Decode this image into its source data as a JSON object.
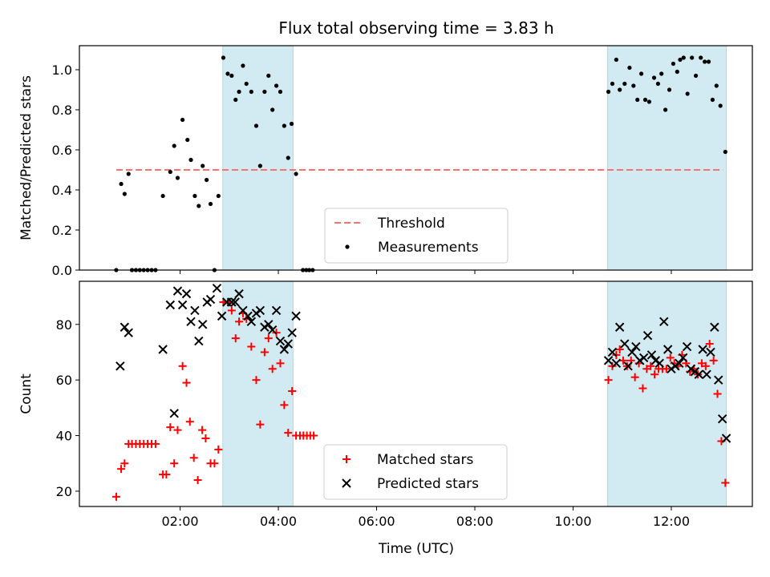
{
  "chart_data": {
    "title": "Flux total observing time = 3.83 h",
    "x_label": "Time (UTC)",
    "x_range_hours": [
      -0.05,
      13.65
    ],
    "x_ticks": [
      "02:00",
      "04:00",
      "06:00",
      "08:00",
      "10:00",
      "12:00"
    ],
    "x_tick_hours": [
      2,
      4,
      6,
      8,
      10,
      12
    ],
    "shaded_intervals_hours": [
      [
        2.87,
        4.3
      ],
      [
        10.7,
        13.12
      ]
    ],
    "shade_color": "#add8e6",
    "panels": [
      {
        "type": "scatter",
        "y_label": "Matched/Predicted stars",
        "y_range": [
          0.0,
          1.12
        ],
        "y_ticks": [
          "0.0",
          "0.2",
          "0.4",
          "0.6",
          "0.8",
          "1.0"
        ],
        "y_tick_values": [
          0,
          0.2,
          0.4,
          0.6,
          0.8,
          1.0
        ],
        "legend": [
          {
            "label": "Threshold",
            "style": "dashed-line",
            "color": "#ff7070"
          },
          {
            "label": "Measurements",
            "style": "dot",
            "color": "#000000"
          }
        ],
        "threshold": {
          "name": "Threshold",
          "value": 0.5,
          "x": [
            0.7,
            13.05
          ],
          "color": "#ff7070"
        },
        "series": [
          {
            "name": "Measurements",
            "marker": "dot",
            "color": "#000000",
            "points": [
              [
                0.7,
                0.0
              ],
              [
                0.8,
                0.43
              ],
              [
                0.87,
                0.38
              ],
              [
                0.95,
                0.48
              ],
              [
                1.02,
                0.0
              ],
              [
                1.1,
                0.0
              ],
              [
                1.18,
                0.0
              ],
              [
                1.26,
                0.0
              ],
              [
                1.34,
                0.0
              ],
              [
                1.42,
                0.0
              ],
              [
                1.5,
                0.0
              ],
              [
                1.65,
                0.37
              ],
              [
                1.8,
                0.49
              ],
              [
                1.88,
                0.62
              ],
              [
                1.95,
                0.46
              ],
              [
                2.05,
                0.75
              ],
              [
                2.15,
                0.65
              ],
              [
                2.22,
                0.55
              ],
              [
                2.3,
                0.37
              ],
              [
                2.38,
                0.32
              ],
              [
                2.46,
                0.52
              ],
              [
                2.54,
                0.45
              ],
              [
                2.62,
                0.33
              ],
              [
                2.7,
                0.0
              ],
              [
                2.78,
                0.37
              ],
              [
                2.88,
                1.06
              ],
              [
                2.97,
                0.98
              ],
              [
                3.05,
                0.97
              ],
              [
                3.13,
                0.85
              ],
              [
                3.2,
                0.89
              ],
              [
                3.28,
                1.02
              ],
              [
                3.35,
                0.93
              ],
              [
                3.45,
                0.89
              ],
              [
                3.55,
                0.72
              ],
              [
                3.63,
                0.52
              ],
              [
                3.72,
                0.89
              ],
              [
                3.8,
                0.97
              ],
              [
                3.88,
                0.8
              ],
              [
                3.96,
                0.92
              ],
              [
                4.04,
                0.89
              ],
              [
                4.12,
                0.72
              ],
              [
                4.2,
                0.56
              ],
              [
                4.27,
                0.73
              ],
              [
                4.36,
                0.48
              ],
              [
                4.5,
                0.0
              ],
              [
                4.57,
                0.0
              ],
              [
                4.63,
                0.0
              ],
              [
                4.7,
                0.0
              ],
              [
                10.72,
                0.89
              ],
              [
                10.8,
                0.93
              ],
              [
                10.88,
                1.05
              ],
              [
                10.95,
                0.9
              ],
              [
                11.05,
                0.93
              ],
              [
                11.15,
                1.01
              ],
              [
                11.23,
                0.92
              ],
              [
                11.31,
                0.85
              ],
              [
                11.39,
                0.98
              ],
              [
                11.47,
                0.85
              ],
              [
                11.55,
                0.84
              ],
              [
                11.65,
                0.96
              ],
              [
                11.73,
                0.93
              ],
              [
                11.8,
                0.98
              ],
              [
                11.88,
                0.8
              ],
              [
                11.96,
                0.9
              ],
              [
                12.04,
                1.03
              ],
              [
                12.12,
                0.99
              ],
              [
                12.18,
                1.05
              ],
              [
                12.25,
                1.06
              ],
              [
                12.33,
                0.88
              ],
              [
                12.42,
                1.06
              ],
              [
                12.5,
                0.97
              ],
              [
                12.6,
                1.06
              ],
              [
                12.68,
                1.04
              ],
              [
                12.76,
                1.04
              ],
              [
                12.84,
                0.85
              ],
              [
                12.92,
                0.92
              ],
              [
                13.0,
                0.82
              ],
              [
                13.1,
                0.59
              ]
            ]
          }
        ]
      },
      {
        "type": "scatter",
        "y_label": "Count",
        "y_range": [
          14.5,
          95.5
        ],
        "y_ticks": [
          "20",
          "40",
          "60",
          "80"
        ],
        "y_tick_values": [
          20,
          40,
          60,
          80
        ],
        "legend": [
          {
            "label": "Matched stars",
            "style": "plus",
            "color": "#ff0000"
          },
          {
            "label": "Predicted stars",
            "style": "x",
            "color": "#000000"
          }
        ],
        "series": [
          {
            "name": "Matched stars",
            "marker": "plus",
            "color": "#ff0000",
            "points": [
              [
                0.7,
                18
              ],
              [
                0.8,
                28
              ],
              [
                0.87,
                30
              ],
              [
                0.95,
                37
              ],
              [
                1.02,
                37
              ],
              [
                1.1,
                37
              ],
              [
                1.18,
                37
              ],
              [
                1.26,
                37
              ],
              [
                1.34,
                37
              ],
              [
                1.42,
                37
              ],
              [
                1.5,
                37
              ],
              [
                1.65,
                26
              ],
              [
                1.72,
                26
              ],
              [
                1.8,
                43
              ],
              [
                1.88,
                30
              ],
              [
                1.95,
                42
              ],
              [
                2.05,
                65
              ],
              [
                2.13,
                59
              ],
              [
                2.2,
                45
              ],
              [
                2.28,
                32
              ],
              [
                2.36,
                24
              ],
              [
                2.45,
                42
              ],
              [
                2.52,
                39
              ],
              [
                2.62,
                30
              ],
              [
                2.7,
                30
              ],
              [
                2.78,
                35
              ],
              [
                2.88,
                88
              ],
              [
                2.97,
                88
              ],
              [
                3.05,
                85
              ],
              [
                3.13,
                75
              ],
              [
                3.2,
                81
              ],
              [
                3.28,
                84
              ],
              [
                3.35,
                82
              ],
              [
                3.45,
                72
              ],
              [
                3.55,
                60
              ],
              [
                3.63,
                44
              ],
              [
                3.72,
                70
              ],
              [
                3.8,
                75
              ],
              [
                3.88,
                64
              ],
              [
                3.96,
                77
              ],
              [
                4.04,
                66
              ],
              [
                4.12,
                51
              ],
              [
                4.2,
                41
              ],
              [
                4.28,
                56
              ],
              [
                4.36,
                40
              ],
              [
                4.44,
                40
              ],
              [
                4.51,
                40
              ],
              [
                4.58,
                40
              ],
              [
                4.65,
                40
              ],
              [
                4.72,
                40
              ],
              [
                10.72,
                60
              ],
              [
                10.8,
                65
              ],
              [
                10.88,
                69
              ],
              [
                10.95,
                71
              ],
              [
                11.02,
                67
              ],
              [
                11.1,
                65
              ],
              [
                11.18,
                67
              ],
              [
                11.26,
                61
              ],
              [
                11.34,
                66
              ],
              [
                11.42,
                57
              ],
              [
                11.5,
                64
              ],
              [
                11.58,
                65
              ],
              [
                11.66,
                62
              ],
              [
                11.74,
                64
              ],
              [
                11.82,
                64
              ],
              [
                11.9,
                64
              ],
              [
                11.98,
                68
              ],
              [
                12.06,
                66
              ],
              [
                12.14,
                65
              ],
              [
                12.22,
                69
              ],
              [
                12.3,
                66
              ],
              [
                12.38,
                63
              ],
              [
                12.46,
                64
              ],
              [
                12.54,
                62
              ],
              [
                12.62,
                66
              ],
              [
                12.7,
                65
              ],
              [
                12.78,
                73
              ],
              [
                12.86,
                67
              ],
              [
                12.94,
                55
              ],
              [
                13.02,
                38
              ],
              [
                13.1,
                23
              ]
            ]
          },
          {
            "name": "Predicted stars",
            "marker": "x",
            "color": "#000000",
            "points": [
              [
                0.78,
                65
              ],
              [
                0.87,
                79
              ],
              [
                0.95,
                77
              ],
              [
                1.65,
                71
              ],
              [
                1.8,
                87
              ],
              [
                1.88,
                48
              ],
              [
                1.95,
                92
              ],
              [
                2.05,
                87
              ],
              [
                2.13,
                91
              ],
              [
                2.22,
                81
              ],
              [
                2.3,
                85
              ],
              [
                2.38,
                74
              ],
              [
                2.46,
                80
              ],
              [
                2.55,
                88
              ],
              [
                2.62,
                89
              ],
              [
                2.75,
                93
              ],
              [
                2.85,
                83
              ],
              [
                2.95,
                88
              ],
              [
                3.05,
                88
              ],
              [
                3.12,
                88
              ],
              [
                3.2,
                91
              ],
              [
                3.28,
                85
              ],
              [
                3.38,
                83
              ],
              [
                3.45,
                81
              ],
              [
                3.55,
                84
              ],
              [
                3.63,
                85
              ],
              [
                3.72,
                79
              ],
              [
                3.8,
                80
              ],
              [
                3.88,
                78
              ],
              [
                3.96,
                85
              ],
              [
                4.04,
                74
              ],
              [
                4.12,
                71
              ],
              [
                4.2,
                73
              ],
              [
                4.28,
                77
              ],
              [
                4.36,
                83
              ],
              [
                10.72,
                67
              ],
              [
                10.8,
                70
              ],
              [
                10.88,
                66
              ],
              [
                10.95,
                79
              ],
              [
                11.05,
                73
              ],
              [
                11.12,
                65
              ],
              [
                11.2,
                70
              ],
              [
                11.28,
                72
              ],
              [
                11.36,
                67
              ],
              [
                11.44,
                68
              ],
              [
                11.52,
                76
              ],
              [
                11.6,
                69
              ],
              [
                11.68,
                67
              ],
              [
                11.76,
                66
              ],
              [
                11.85,
                81
              ],
              [
                11.93,
                71
              ],
              [
                12.0,
                64
              ],
              [
                12.08,
                65
              ],
              [
                12.16,
                66
              ],
              [
                12.24,
                68
              ],
              [
                12.32,
                72
              ],
              [
                12.4,
                64
              ],
              [
                12.48,
                63
              ],
              [
                12.56,
                62
              ],
              [
                12.64,
                71
              ],
              [
                12.72,
                62
              ],
              [
                12.8,
                70
              ],
              [
                12.88,
                79
              ],
              [
                12.96,
                60
              ],
              [
                13.04,
                46
              ],
              [
                13.12,
                39
              ]
            ]
          }
        ]
      }
    ]
  }
}
